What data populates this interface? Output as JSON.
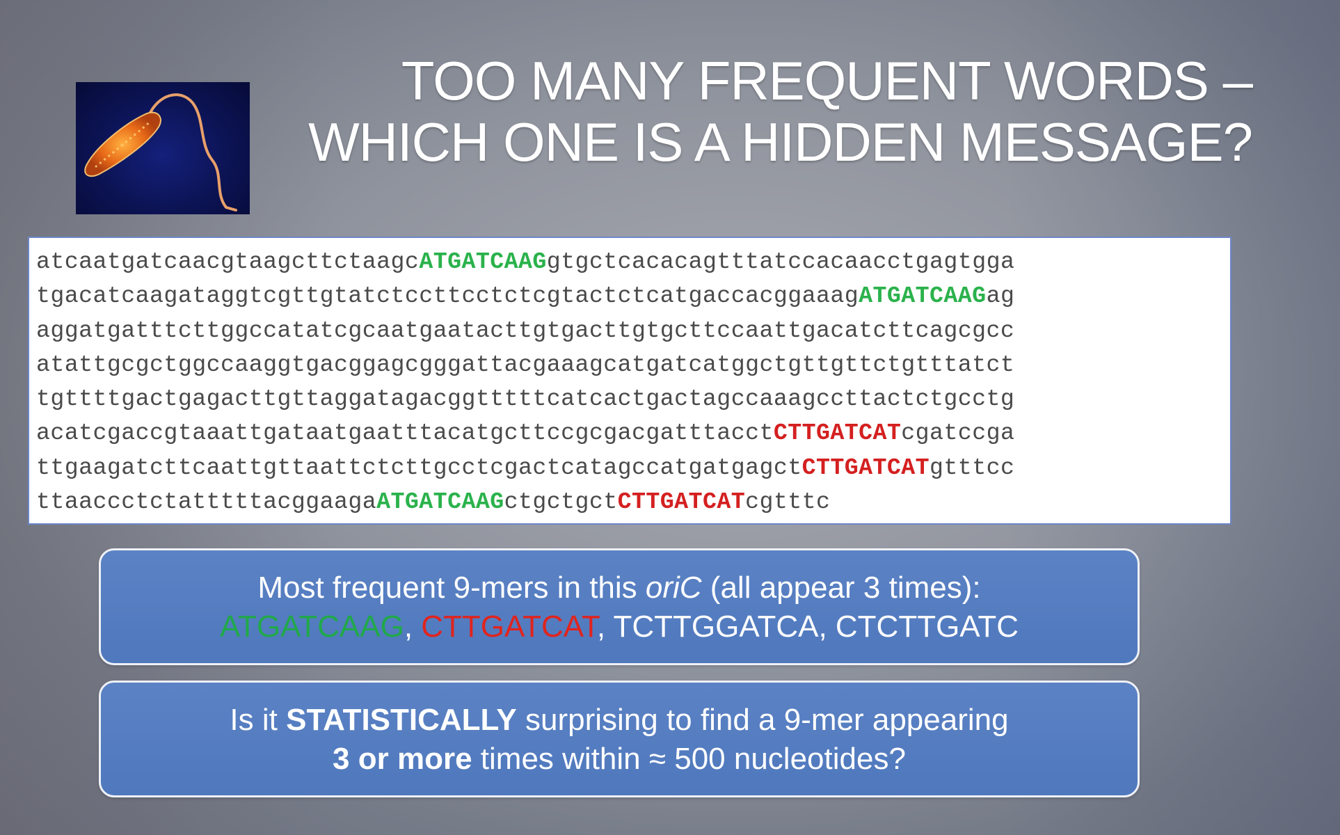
{
  "title": {
    "line1": "TOO MANY FREQUENT WORDS –",
    "line2": "WHICH ONE IS A HIDDEN MESSAGE?"
  },
  "image": {
    "icon": "bacterium-image"
  },
  "sequence": {
    "lines": [
      [
        {
          "t": "atcaatgatcaacgtaagcttctaagc"
        },
        {
          "t": "ATGATCAAG",
          "c": "green"
        },
        {
          "t": "gtgctcacacagtttatccacaacctgagtgga"
        }
      ],
      [
        {
          "t": "tgacatcaagataggtcgttgtatctccttcctctcgtactctcatgaccacggaaag"
        },
        {
          "t": "ATGATCAAG",
          "c": "green"
        },
        {
          "t": "ag"
        }
      ],
      [
        {
          "t": "aggatgatttcttggccatatcgcaatgaatacttgtgacttgtgcttccaattgacatcttcagcgcc"
        }
      ],
      [
        {
          "t": "atattgcgctggccaaggtgacggagcgggattacgaaagcatgatcatggctgttgttctgtttatct"
        }
      ],
      [
        {
          "t": "tgttttgactgagacttgttaggatagacggtttttcatcactgactagccaaagccttactctgcctg"
        }
      ],
      [
        {
          "t": "acatcgaccgtaaattgataatgaatttacatgcttccgcgacgatttacct"
        },
        {
          "t": "CTTGATCAT",
          "c": "red"
        },
        {
          "t": "cgatccga"
        }
      ],
      [
        {
          "t": "ttgaagatcttcaattgttaattctcttgcctcgactcatagccatgatgagct"
        },
        {
          "t": "CTTGATCAT",
          "c": "red"
        },
        {
          "t": "gtttcc"
        }
      ],
      [
        {
          "t": "ttaaccctctatttttacggaaga"
        },
        {
          "t": "ATGATCAAG",
          "c": "green"
        },
        {
          "t": "ctgctgct"
        },
        {
          "t": "CTTGATCAT",
          "c": "red"
        },
        {
          "t": "cgtttc"
        }
      ]
    ]
  },
  "box1": {
    "line1_pre": "Most frequent 9-mers in this ",
    "line1_ital": "oriC",
    "line1_post": " (all appear 3 times):",
    "kmer_green": "ATGATCAAG",
    "sep1": ", ",
    "kmer_red": "CTTGATCAT",
    "sep2": ", ",
    "kmer_rest": "TCTTGGATCA, CTCTTGATC"
  },
  "box2": {
    "pre": "Is it ",
    "bold1": "STATISTICALLY",
    "mid": " surprising to find a 9-mer appearing",
    "bold2": "3 or more",
    "post": " times within ≈ 500 nucleotides?"
  },
  "colors": {
    "green": "#2bb24c",
    "red": "#d42020",
    "box_blue": "#5479bf"
  }
}
